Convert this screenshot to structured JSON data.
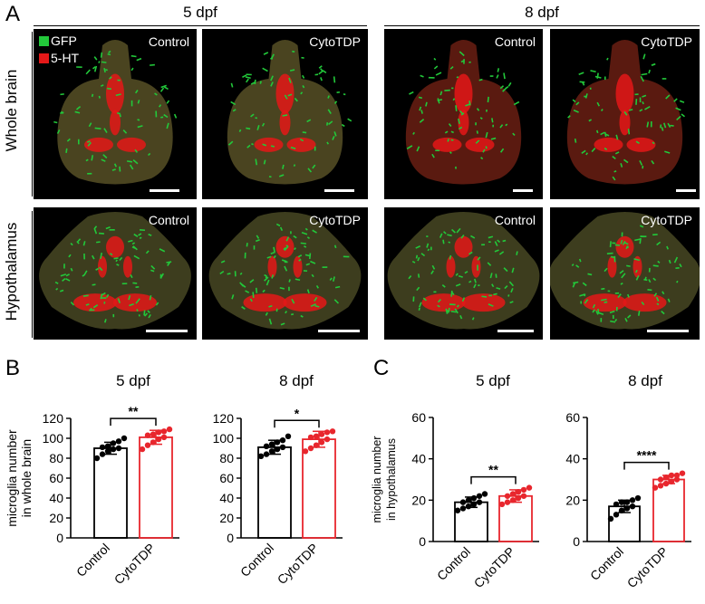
{
  "figure": {
    "panel_a": "A",
    "panel_b": "B",
    "panel_c": "C",
    "groups": [
      "5 dpf",
      "8 dpf"
    ],
    "rows": [
      "Whole brain",
      "Hypothalamus"
    ],
    "legend": [
      {
        "label": "GFP",
        "color": "#22c83a"
      },
      {
        "label": "5-HT",
        "color": "#e41818"
      }
    ],
    "tile_labels": [
      "Control",
      "CytoTDP",
      "Control",
      "CytoTDP"
    ],
    "colors": {
      "control": "#000000",
      "cytotdp": "#e8262d"
    }
  },
  "chart_data": [
    {
      "type": "bar",
      "panel": "B",
      "title": "5 dpf",
      "categories": [
        "Control",
        "CytoTDP"
      ],
      "values": [
        90,
        101
      ],
      "error": [
        6,
        7
      ],
      "points": [
        [
          80,
          84,
          87,
          89,
          90,
          91,
          92,
          95,
          97,
          100
        ],
        [
          89,
          93,
          96,
          99,
          101,
          103,
          104,
          106,
          107,
          109
        ]
      ],
      "ylabel": "microglia number\nin whole brain",
      "ylim": [
        0,
        120
      ],
      "yticks": [
        0,
        20,
        40,
        60,
        80,
        100,
        120
      ],
      "significance": "**",
      "colors": [
        "#000000",
        "#e8262d"
      ]
    },
    {
      "type": "bar",
      "panel": "B",
      "title": "8 dpf",
      "categories": [
        "Control",
        "CytoTDP"
      ],
      "values": [
        91,
        99
      ],
      "error": [
        7,
        8
      ],
      "points": [
        [
          82,
          84,
          87,
          89,
          91,
          92,
          94,
          96,
          98,
          102
        ],
        [
          87,
          90,
          93,
          96,
          99,
          101,
          102,
          104,
          106,
          107
        ]
      ],
      "ylabel": "",
      "ylim": [
        0,
        120
      ],
      "yticks": [
        0,
        20,
        40,
        60,
        80,
        100,
        120
      ],
      "significance": "*",
      "colors": [
        "#000000",
        "#e8262d"
      ]
    },
    {
      "type": "bar",
      "panel": "C",
      "title": "5 dpf",
      "categories": [
        "Control",
        "CytoTDP"
      ],
      "values": [
        19,
        22
      ],
      "error": [
        2.5,
        3
      ],
      "points": [
        [
          15,
          16,
          17,
          18,
          19,
          19,
          20,
          21,
          22,
          23
        ],
        [
          18,
          19,
          20,
          21,
          22,
          22,
          23,
          24,
          25,
          26
        ]
      ],
      "ylabel": "microglia number\nin hypothalamus",
      "ylim": [
        0,
        60
      ],
      "yticks": [
        0,
        20,
        40,
        60
      ],
      "significance": "**",
      "colors": [
        "#000000",
        "#e8262d"
      ]
    },
    {
      "type": "bar",
      "panel": "C",
      "title": "8 dpf",
      "categories": [
        "Control",
        "CytoTDP"
      ],
      "values": [
        17,
        30
      ],
      "error": [
        3,
        2
      ],
      "points": [
        [
          11,
          13,
          15,
          16,
          17,
          18,
          19,
          19,
          20,
          21
        ],
        [
          26,
          27,
          28,
          29,
          30,
          30,
          31,
          32,
          32,
          33
        ]
      ],
      "ylabel": "",
      "ylim": [
        0,
        60
      ],
      "yticks": [
        0,
        20,
        40,
        60
      ],
      "significance": "****",
      "colors": [
        "#000000",
        "#e8262d"
      ]
    }
  ]
}
